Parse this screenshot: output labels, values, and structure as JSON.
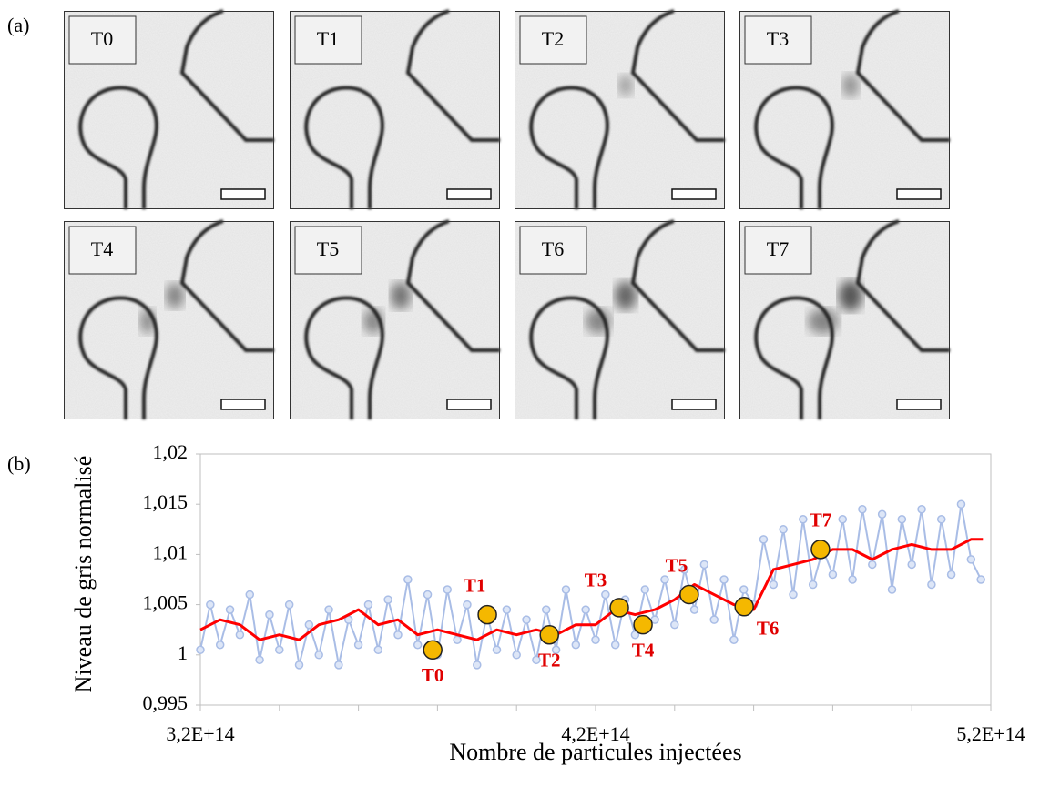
{
  "panel_a": {
    "label": "(a)",
    "frames": [
      "T0",
      "T1",
      "T2",
      "T3",
      "T4",
      "T5",
      "T6",
      "T7"
    ]
  },
  "chart_data": {
    "type": "line",
    "panel_label": "(b)",
    "xlabel": "Nombre de particules injectées",
    "ylabel": "Niveau de gris normalisé",
    "xlim": [
      320000000000000.0,
      520000000000000.0
    ],
    "xticks": [
      {
        "value": 320000000000000.0,
        "label": "3,2E+14"
      },
      {
        "value": 420000000000000.0,
        "label": "4,2E+14"
      },
      {
        "value": 520000000000000.0,
        "label": "5,2E+14"
      }
    ],
    "xminorticks": [
      340000000000000.0,
      360000000000000.0,
      380000000000000.0,
      400000000000000.0,
      440000000000000.0,
      460000000000000.0,
      480000000000000.0,
      500000000000000.0
    ],
    "ylim": [
      0.995,
      1.02
    ],
    "yticks": [
      {
        "value": 0.995,
        "label": "0,995"
      },
      1,
      {
        "value": 1.005,
        "label": "1,005"
      },
      {
        "value": 1.01,
        "label": "1,01"
      },
      {
        "value": 1.015,
        "label": "1,015"
      },
      {
        "value": 1.02,
        "label": "1,02"
      }
    ],
    "series": [
      {
        "color": "#a9bde6",
        "marker": "circle",
        "x": [
          320000000000000.0,
          322500000000000.0,
          325000000000000.0,
          327500000000000.0,
          330000000000000.0,
          332500000000000.0,
          335000000000000.0,
          337500000000000.0,
          340000000000000.0,
          342500000000000.0,
          345000000000000.0,
          347500000000000.0,
          350000000000000.0,
          352500000000000.0,
          355000000000000.0,
          357500000000000.0,
          360000000000000.0,
          362500000000000.0,
          365000000000000.0,
          367500000000000.0,
          370000000000000.0,
          372500000000000.0,
          375000000000000.0,
          377500000000000.0,
          380000000000000.0,
          382500000000000.0,
          385000000000000.0,
          387500000000000.0,
          390000000000000.0,
          392500000000000.0,
          395000000000000.0,
          397500000000000.0,
          400000000000000.0,
          402500000000000.0,
          405000000000000.0,
          407500000000000.0,
          410000000000000.0,
          412500000000000.0,
          415000000000000.0,
          417500000000000.0,
          420000000000000.0,
          422500000000000.0,
          425000000000000.0,
          427500000000000.0,
          430000000000000.0,
          432500000000000.0,
          435000000000000.0,
          437500000000000.0,
          440000000000000.0,
          442500000000000.0,
          445000000000000.0,
          447500000000000.0,
          450000000000000.0,
          452500000000000.0,
          455000000000000.0,
          457500000000000.0,
          460000000000000.0,
          462500000000000.0,
          465000000000000.0,
          467500000000000.0,
          470000000000000.0,
          472500000000000.0,
          475000000000000.0,
          477500000000000.0,
          480000000000000.0,
          482500000000000.0,
          485000000000000.0,
          487500000000000.0,
          490000000000000.0,
          492500000000000.0,
          495000000000000.0,
          497500000000000.0,
          500000000000000.0,
          502500000000000.0,
          505000000000000.0,
          507500000000000.0,
          510000000000000.0,
          512500000000000.0,
          515000000000000.0,
          517500000000000.0
        ],
        "values": [
          1.0005,
          1.005,
          1.001,
          1.0045,
          1.002,
          1.006,
          0.9995,
          1.004,
          1.0005,
          1.005,
          0.999,
          1.003,
          1.0,
          1.0045,
          0.999,
          1.0035,
          1.001,
          1.005,
          1.0005,
          1.0055,
          1.002,
          1.0075,
          1.001,
          1.006,
          1.0,
          1.0065,
          1.0015,
          1.005,
          0.999,
          1.004,
          1.0005,
          1.0045,
          1.0,
          1.0035,
          0.9995,
          1.0045,
          1.0005,
          1.0065,
          1.001,
          1.0045,
          1.0015,
          1.006,
          1.001,
          1.0055,
          1.002,
          1.0065,
          1.0035,
          1.0075,
          1.003,
          1.0085,
          1.0045,
          1.009,
          1.0035,
          1.0075,
          1.0015,
          1.0065,
          1.005,
          1.0115,
          1.007,
          1.0125,
          1.006,
          1.0135,
          1.007,
          1.0105,
          1.008,
          1.0135,
          1.0075,
          1.0145,
          1.009,
          1.014,
          1.0065,
          1.0135,
          1.009,
          1.0145,
          1.007,
          1.0135,
          1.008,
          1.015,
          1.0095,
          1.0075
        ]
      },
      {
        "color": "#ff0000",
        "x": [
          320000000000000.0,
          325000000000000.0,
          330000000000000.0,
          335000000000000.0,
          340000000000000.0,
          345000000000000.0,
          350000000000000.0,
          355000000000000.0,
          360000000000000.0,
          365000000000000.0,
          370000000000000.0,
          375000000000000.0,
          380000000000000.0,
          385000000000000.0,
          390000000000000.0,
          395000000000000.0,
          400000000000000.0,
          405000000000000.0,
          410000000000000.0,
          415000000000000.0,
          420000000000000.0,
          425000000000000.0,
          430000000000000.0,
          435000000000000.0,
          440000000000000.0,
          445000000000000.0,
          450000000000000.0,
          455000000000000.0,
          460000000000000.0,
          465000000000000.0,
          470000000000000.0,
          475000000000000.0,
          480000000000000.0,
          485000000000000.0,
          490000000000000.0,
          495000000000000.0,
          500000000000000.0,
          505000000000000.0,
          510000000000000.0,
          515000000000000.0,
          518000000000000.0
        ],
        "values": [
          1.0025,
          1.0035,
          1.003,
          1.0015,
          1.002,
          1.0015,
          1.003,
          1.0035,
          1.0045,
          1.003,
          1.0035,
          1.002,
          1.0025,
          1.002,
          1.0015,
          1.0025,
          1.002,
          1.0025,
          1.002,
          1.003,
          1.003,
          1.0045,
          1.004,
          1.0045,
          1.0055,
          1.007,
          1.006,
          1.005,
          1.0045,
          1.0085,
          1.009,
          1.0095,
          1.0105,
          1.0105,
          1.0095,
          1.0105,
          1.011,
          1.0105,
          1.0105,
          1.0115,
          1.0115
        ]
      }
    ],
    "highlights": {
      "color": "#f5b800",
      "labels": [
        "T0",
        "T1",
        "T2",
        "T3",
        "T4",
        "T5",
        "T6",
        "T7"
      ],
      "label_color": "#e00000",
      "x": [
        378800000000000.0,
        392600000000000.0,
        408300000000000.0,
        426000000000000.0,
        432000000000000.0,
        443700000000000.0,
        457600000000000.0,
        476900000000000.0
      ],
      "values": [
        1.0005,
        1.004,
        1.002,
        1.0047,
        1.003,
        1.006,
        1.0048,
        1.0105
      ]
    }
  }
}
